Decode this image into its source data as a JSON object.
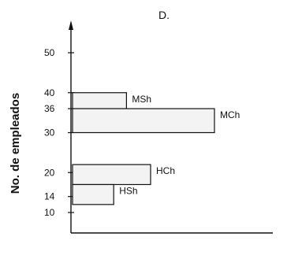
{
  "chart_data": {
    "type": "bar",
    "orientation": "horizontal",
    "title": "D.",
    "ylabel": "No. de empleados",
    "xlabel": "",
    "yticks": [
      10,
      14,
      20,
      30,
      36,
      40,
      50
    ],
    "bars": [
      {
        "label": "MSh",
        "y_from": 36,
        "y_to": 40,
        "length": 0.38
      },
      {
        "label": "MCh",
        "y_from": 30,
        "y_to": 36,
        "length": 1.0
      },
      {
        "label": "HCh",
        "y_from": 17,
        "y_to": 22,
        "length": 0.55
      },
      {
        "label": "HSh",
        "y_from": 12,
        "y_to": 17,
        "length": 0.29
      }
    ],
    "colors": {
      "bar_fill": "#f3f3f3",
      "bar_stroke": "#111111",
      "axis": "#111111"
    }
  }
}
